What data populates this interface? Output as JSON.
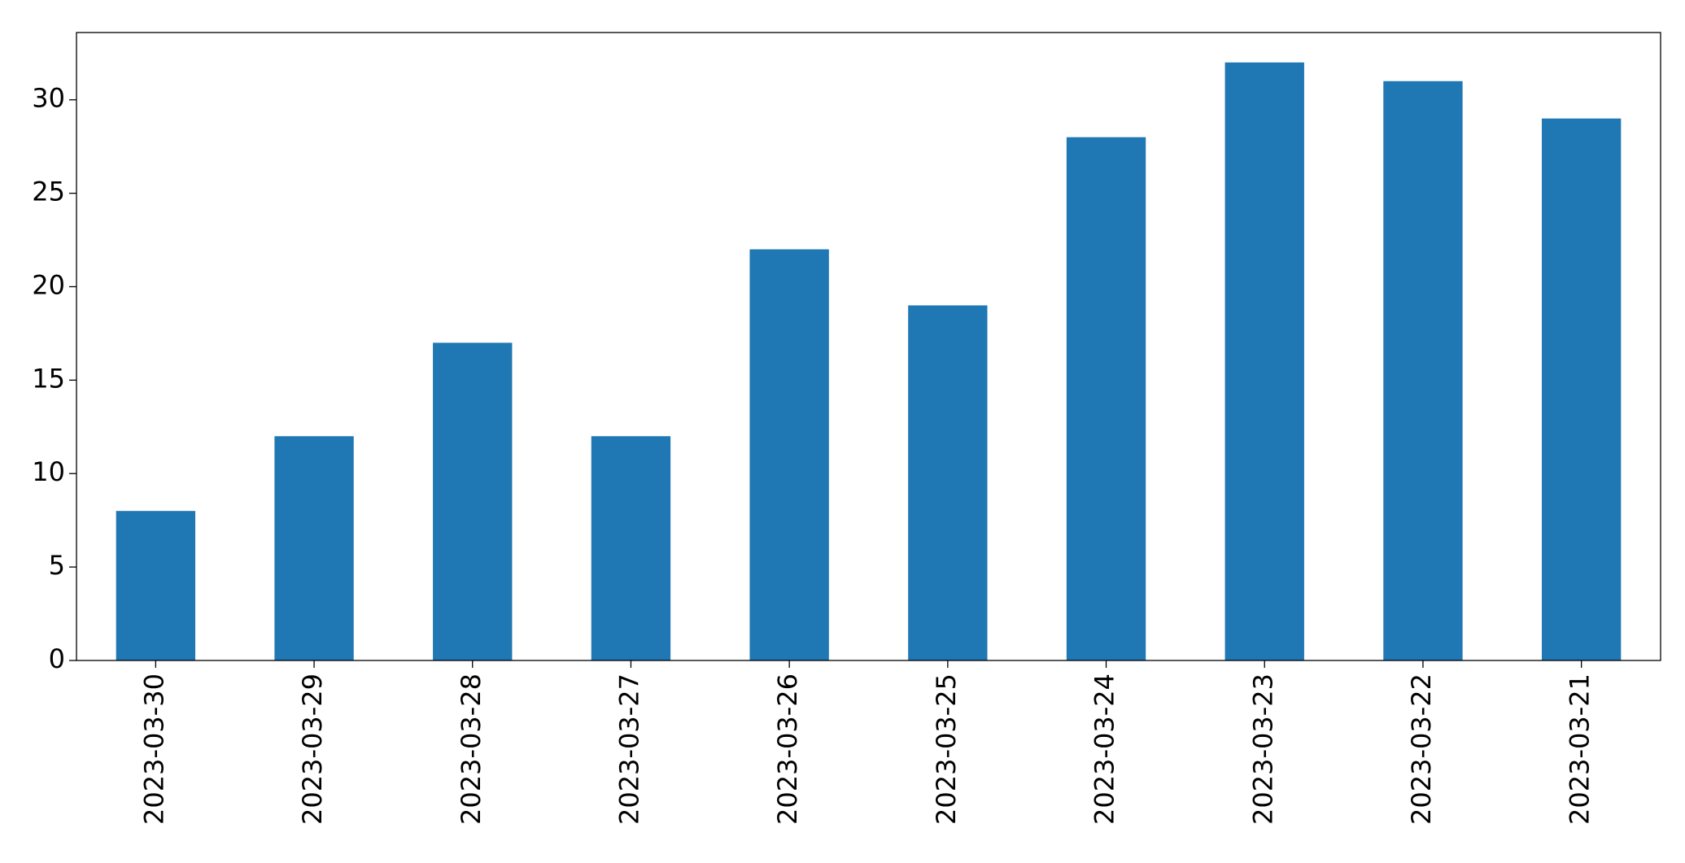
{
  "chart_data": {
    "type": "bar",
    "categories": [
      "2023-03-30",
      "2023-03-29",
      "2023-03-28",
      "2023-03-27",
      "2023-03-26",
      "2023-03-25",
      "2023-03-24",
      "2023-03-23",
      "2023-03-22",
      "2023-03-21"
    ],
    "values": [
      8,
      12,
      17,
      12,
      22,
      19,
      28,
      32,
      31,
      29
    ],
    "color": "#1f77b4",
    "ylim": [
      0,
      33.6
    ],
    "yticks": [
      0,
      5,
      10,
      15,
      20,
      25,
      30
    ],
    "grid": false
  }
}
